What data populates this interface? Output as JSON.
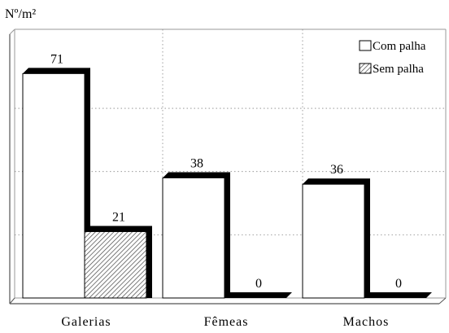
{
  "chart_data": {
    "type": "bar",
    "ylabel": "Nº/m²",
    "categories": [
      "Galerias",
      "Fêmeas",
      "Machos"
    ],
    "series": [
      {
        "name": "Com palha",
        "values": [
          71,
          38,
          36
        ],
        "pattern": "white"
      },
      {
        "name": "Sem palha",
        "values": [
          21,
          0,
          0
        ],
        "pattern": "hatched"
      }
    ],
    "ylim": [
      0,
      85
    ],
    "grid": true,
    "legend_position": "top-right",
    "style": "3d-shadow"
  }
}
